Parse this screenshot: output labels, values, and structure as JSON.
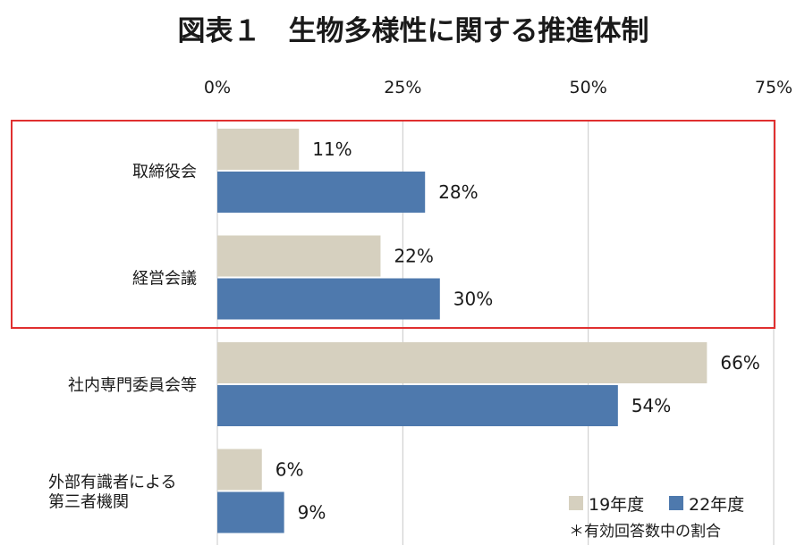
{
  "chart_data": {
    "type": "bar",
    "orientation": "horizontal",
    "title": "図表１　生物多様性に関する推進体制",
    "categories": [
      [
        "取締役会"
      ],
      [
        "経営会議"
      ],
      [
        "社内専門委員会等"
      ],
      [
        "外部有識者による",
        "第三者機関"
      ]
    ],
    "series": [
      {
        "name": "19年度",
        "values": [
          11,
          22,
          66,
          6
        ],
        "color": "#d6d0bf"
      },
      {
        "name": "22年度",
        "values": [
          28,
          30,
          54,
          9
        ],
        "color": "#4e79ad"
      }
    ],
    "value_suffix": "%",
    "xlim": [
      0,
      75
    ],
    "xticks": [
      0,
      25,
      50,
      75
    ],
    "xtick_labels": [
      "0%",
      "25%",
      "50%",
      "75%"
    ],
    "grid": true,
    "legend_position": "bottom-right",
    "note": "＊有効回答数中の割合",
    "highlight_box": {
      "categories": [
        0,
        1
      ],
      "color": "#e03030"
    }
  }
}
